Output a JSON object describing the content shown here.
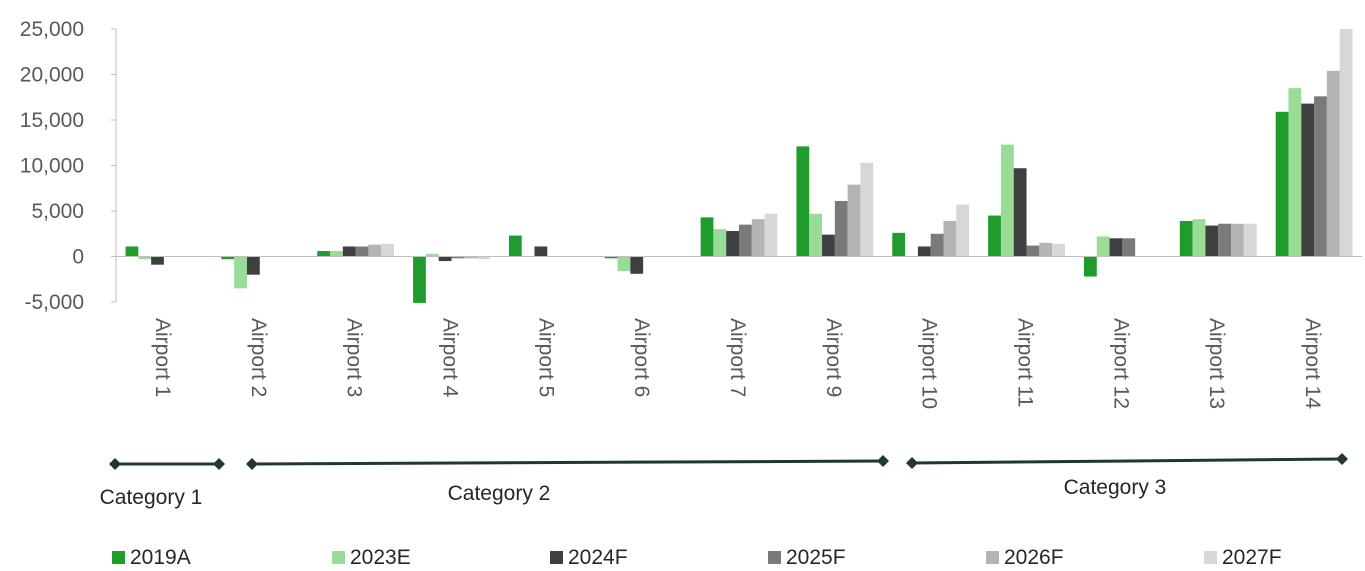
{
  "chart_data": {
    "type": "bar",
    "categories": [
      "Airport 1",
      "Airport 2",
      "Airport 3",
      "Airport 4",
      "Airport 5",
      "Airport 6",
      "Airport 7",
      "Airport 9",
      "Airport 10",
      "Airport 11",
      "Airport 12",
      "Airport 13",
      "Airport 14"
    ],
    "series": [
      {
        "name": "2019A",
        "color": "#1e9c2c",
        "values": [
          1100,
          -300,
          600,
          -5100,
          2300,
          -200,
          4300,
          12100,
          2600,
          4500,
          -2200,
          3900,
          15900
        ]
      },
      {
        "name": "2023E",
        "color": "#98dc98",
        "values": [
          -300,
          -3500,
          600,
          300,
          0,
          -1600,
          3000,
          4700,
          0,
          12300,
          2200,
          4100,
          18500
        ]
      },
      {
        "name": "2024F",
        "color": "#3f3f3f",
        "values": [
          -900,
          -2000,
          1100,
          -500,
          1100,
          -1900,
          2800,
          2400,
          1100,
          9700,
          2000,
          3400,
          16800
        ]
      },
      {
        "name": "2025F",
        "color": "#7a7a7a",
        "values": [
          0,
          0,
          1100,
          -200,
          0,
          0,
          3500,
          6100,
          2500,
          1200,
          2000,
          3600,
          17600
        ]
      },
      {
        "name": "2026F",
        "color": "#b4b4b4",
        "values": [
          0,
          0,
          1300,
          -200,
          0,
          0,
          4100,
          7900,
          3900,
          1500,
          0,
          3600,
          20400
        ]
      },
      {
        "name": "2027F",
        "color": "#d7d7d7",
        "values": [
          0,
          0,
          1400,
          -300,
          0,
          0,
          4700,
          10300,
          5700,
          1400,
          0,
          3600,
          25000
        ]
      }
    ],
    "ylim": [
      -5000,
      25000
    ],
    "yticks": [
      "-5,000",
      "0",
      "5,000",
      "10,000",
      "15,000",
      "20,000",
      "25,000"
    ],
    "ytick_values": [
      -5000,
      0,
      5000,
      10000,
      15000,
      20000,
      25000
    ],
    "grid": false,
    "legend_position": "bottom",
    "groups": [
      {
        "label": "Category 1",
        "first": 0,
        "last": 0
      },
      {
        "label": "Category 2",
        "first": 1,
        "last": 7
      },
      {
        "label": "Category 3",
        "first": 8,
        "last": 12
      }
    ],
    "bracket_color": "#1f3a2a"
  }
}
